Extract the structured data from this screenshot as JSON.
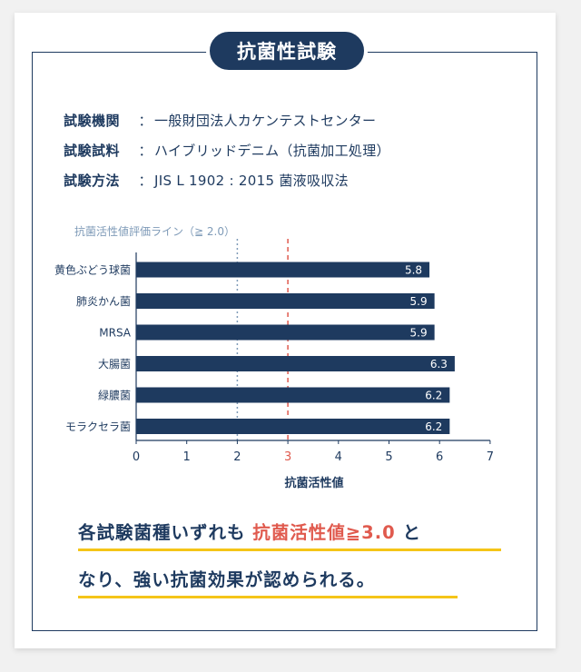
{
  "header": {
    "title": "抗菌性試験"
  },
  "info": [
    {
      "key": "試験機関",
      "sep": "：",
      "value": "一般財団法人カケンテストセンター"
    },
    {
      "key": "試験試料",
      "sep": "：",
      "value": "ハイブリッドデニム（抗菌加工処理）"
    },
    {
      "key": "試験方法",
      "sep": "：",
      "value": "JIS L 1902 : 2015 菌液吸収法"
    }
  ],
  "chart_data": {
    "type": "bar",
    "orientation": "horizontal",
    "categories": [
      "黄色ぶどう球菌",
      "肺炎かん菌",
      "MRSA",
      "大腸菌",
      "緑膿菌",
      "モラクセラ菌"
    ],
    "values": [
      5.8,
      5.9,
      5.9,
      6.3,
      6.2,
      6.2
    ],
    "value_labels": [
      "5.8",
      "5.9",
      "5.9",
      "6.3",
      "6.2",
      "6.2"
    ],
    "xlabel": "抗菌活性値",
    "xlim": [
      0,
      7
    ],
    "xticks": [
      0,
      1,
      2,
      3,
      4,
      5,
      6,
      7
    ],
    "xtick_labels": [
      "0",
      "1",
      "2",
      "3",
      "4",
      "5",
      "6",
      "7"
    ],
    "reference_lines": [
      {
        "value": 2.0,
        "label": "抗菌活性値評価ライン（≧ 2.0）",
        "style": "dotted",
        "color": "#7f9bb8"
      },
      {
        "value": 3.0,
        "label": "",
        "style": "dashed",
        "color": "#e05a4e"
      }
    ],
    "bar_color": "#1e3a5f",
    "highlight_tick": 3
  },
  "conclusion": {
    "line1_pre": "各試験菌種いずれも ",
    "line1_highlight": "抗菌活性値≧3.0",
    "line1_post": " と",
    "line2": "なり、強い抗菌効果が認められる。",
    "highlight_color": "#e05a4e",
    "underline_color": "#f5c518"
  }
}
